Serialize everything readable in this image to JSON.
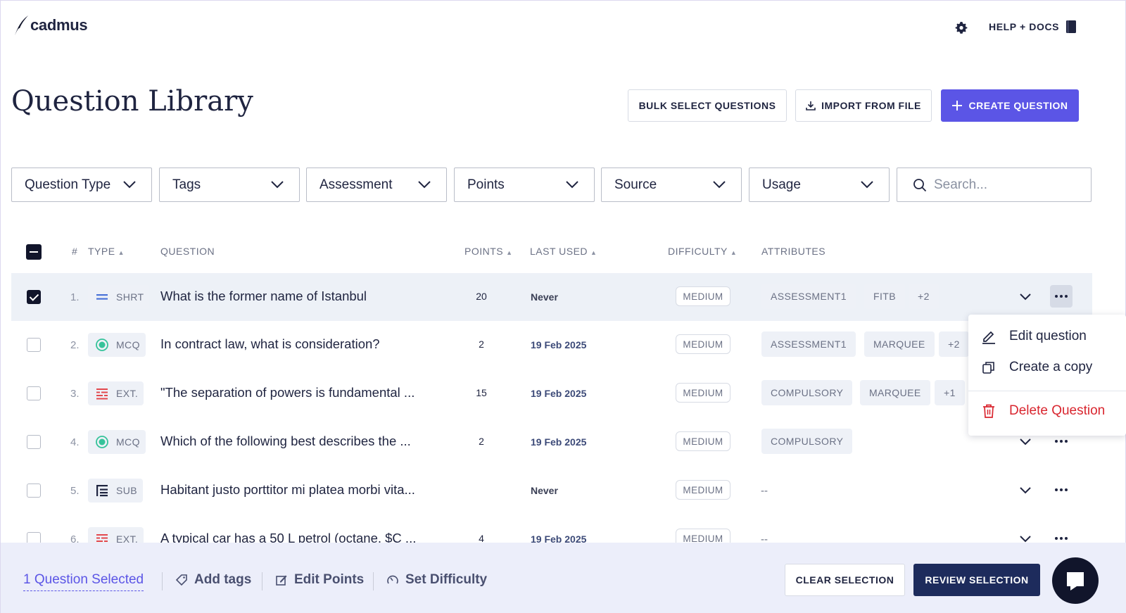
{
  "brand": {
    "name": "cadmus"
  },
  "header": {
    "help_label": "HELP + DOCS"
  },
  "page": {
    "title": "Question Library"
  },
  "actions": {
    "bulk_select": "BULK SELECT QUESTIONS",
    "import": "IMPORT FROM FILE",
    "create": "CREATE QUESTION"
  },
  "filters": [
    "Question Type",
    "Tags",
    "Assessment",
    "Points",
    "Source",
    "Usage"
  ],
  "search": {
    "placeholder": "Search..."
  },
  "columns": {
    "num": "#",
    "type": "TYPE",
    "question": "QUESTION",
    "points": "POINTS",
    "last_used": "LAST USED",
    "difficulty": "DIFFICULTY",
    "attributes": "ATTRIBUTES"
  },
  "rows": [
    {
      "num": "1.",
      "type": "SHRT",
      "icon": "short-answer-icon",
      "question": "What is the former name of Istanbul",
      "points": "20",
      "last_used": "Never",
      "difficulty": "MEDIUM",
      "tags": [
        "ASSESSMENT1",
        "FITB",
        "+2"
      ],
      "selected": true
    },
    {
      "num": "2.",
      "type": "MCQ",
      "icon": "multiple-choice-icon",
      "question": "In contract law, what is consideration?",
      "points": "2",
      "last_used": "19 Feb 2025",
      "difficulty": "MEDIUM",
      "tags": [
        "ASSESSMENT1",
        "MARQUEE",
        "+2"
      ],
      "selected": false
    },
    {
      "num": "3.",
      "type": "EXT.",
      "icon": "extended-response-icon",
      "question": "\"The separation of powers is fundamental ...",
      "points": "15",
      "last_used": "19 Feb 2025",
      "difficulty": "MEDIUM",
      "tags": [
        "COMPULSORY",
        "MARQUEE",
        "+1"
      ],
      "selected": false
    },
    {
      "num": "4.",
      "type": "MCQ",
      "icon": "multiple-choice-icon",
      "question": "Which of the following best describes the ...",
      "points": "2",
      "last_used": "19 Feb 2025",
      "difficulty": "MEDIUM",
      "tags": [
        "COMPULSORY"
      ],
      "selected": false
    },
    {
      "num": "5.",
      "type": "SUB",
      "icon": "sub-question-icon",
      "question": "Habitant justo porttitor mi platea morbi vita...",
      "points": "",
      "last_used": "Never",
      "difficulty": "MEDIUM",
      "tags": [],
      "attributes_empty": "--",
      "selected": false
    },
    {
      "num": "6.",
      "type": "EXT.",
      "icon": "extended-response-icon",
      "question": "A typical car has a 50 L petrol (octane, $C ...",
      "points": "4",
      "last_used": "19 Feb 2025",
      "difficulty": "MEDIUM",
      "tags": [],
      "attributes_empty": "--",
      "selected": false
    }
  ],
  "context_menu": {
    "edit": "Edit question",
    "copy": "Create a copy",
    "delete": "Delete Question"
  },
  "selection_bar": {
    "count_label": "1 Question Selected",
    "add_tags": "Add tags",
    "edit_points": "Edit Points",
    "set_difficulty": "Set Difficulty",
    "clear": "CLEAR SELECTION",
    "review": "REVIEW SELECTION"
  },
  "colors": {
    "primary": "#5b55e6",
    "navy": "#1d2b5c",
    "danger": "#d9262f",
    "selection_bar_bg": "#eceefa"
  }
}
